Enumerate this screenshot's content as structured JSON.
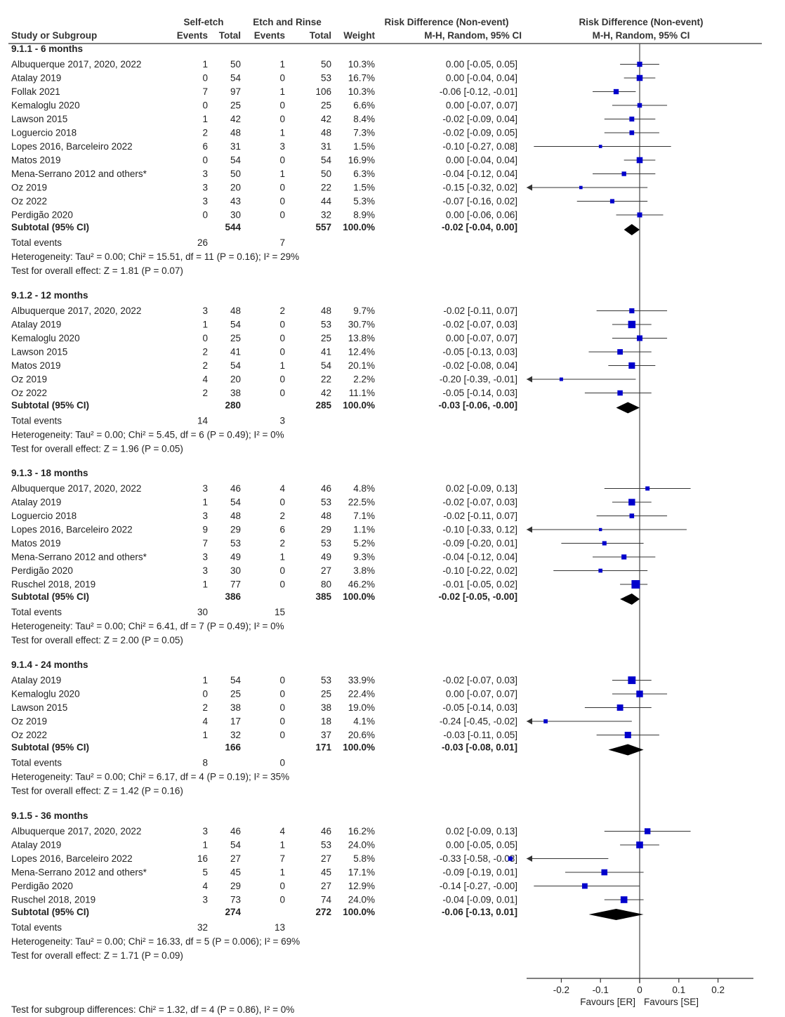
{
  "chart_data": {
    "type": "forest",
    "header": {
      "group1": "Self-etch",
      "group2": "Etch and Rinse",
      "rd_title": "Risk Difference (Non-event)",
      "rd_method": "M-H, Random, 95% CI",
      "study_col": "Study or Subgroup",
      "events_col": "Events",
      "total_col": "Total",
      "weight_col": "Weight"
    },
    "x_axis": {
      "ticks": [
        "-0.2",
        "-0.1",
        "0",
        "0.1",
        "0.2"
      ],
      "range": [
        -0.3,
        0.3
      ],
      "favours_left": "Favours [ER]",
      "favours_right": "Favours [SE]"
    },
    "subgroups": [
      {
        "title": "9.1.1 - 6 months",
        "studies": [
          {
            "name": "Albuquerque 2017, 2020, 2022",
            "e1": "1",
            "n1": "50",
            "e2": "1",
            "n2": "50",
            "weight": "10.3%",
            "ci": "0.00 [-0.05, 0.05]",
            "rd": 0.0,
            "lo": -0.05,
            "hi": 0.05
          },
          {
            "name": "Atalay 2019",
            "e1": "0",
            "n1": "54",
            "e2": "0",
            "n2": "53",
            "weight": "16.7%",
            "ci": "0.00 [-0.04, 0.04]",
            "rd": 0.0,
            "lo": -0.04,
            "hi": 0.04
          },
          {
            "name": "Follak 2021",
            "e1": "7",
            "n1": "97",
            "e2": "1",
            "n2": "106",
            "weight": "10.3%",
            "ci": "-0.06 [-0.12, -0.01]",
            "rd": -0.06,
            "lo": -0.12,
            "hi": -0.01
          },
          {
            "name": "Kemaloglu 2020",
            "e1": "0",
            "n1": "25",
            "e2": "0",
            "n2": "25",
            "weight": "6.6%",
            "ci": "0.00 [-0.07, 0.07]",
            "rd": 0.0,
            "lo": -0.07,
            "hi": 0.07
          },
          {
            "name": "Lawson 2015",
            "e1": "1",
            "n1": "42",
            "e2": "0",
            "n2": "42",
            "weight": "8.4%",
            "ci": "-0.02 [-0.09, 0.04]",
            "rd": -0.02,
            "lo": -0.09,
            "hi": 0.04
          },
          {
            "name": "Loguercio 2018",
            "e1": "2",
            "n1": "48",
            "e2": "1",
            "n2": "48",
            "weight": "7.3%",
            "ci": "-0.02 [-0.09, 0.05]",
            "rd": -0.02,
            "lo": -0.09,
            "hi": 0.05
          },
          {
            "name": "Lopes 2016, Barceleiro 2022",
            "e1": "6",
            "n1": "31",
            "e2": "3",
            "n2": "31",
            "weight": "1.5%",
            "ci": "-0.10 [-0.27, 0.08]",
            "rd": -0.1,
            "lo": -0.27,
            "hi": 0.08
          },
          {
            "name": "Matos 2019",
            "e1": "0",
            "n1": "54",
            "e2": "0",
            "n2": "54",
            "weight": "16.9%",
            "ci": "0.00 [-0.04, 0.04]",
            "rd": 0.0,
            "lo": -0.04,
            "hi": 0.04
          },
          {
            "name": "Mena-Serrano 2012 and others*",
            "e1": "3",
            "n1": "50",
            "e2": "1",
            "n2": "50",
            "weight": "6.3%",
            "ci": "-0.04 [-0.12, 0.04]",
            "rd": -0.04,
            "lo": -0.12,
            "hi": 0.04
          },
          {
            "name": "Oz 2019",
            "e1": "3",
            "n1": "20",
            "e2": "0",
            "n2": "22",
            "weight": "1.5%",
            "ci": "-0.15 [-0.32, 0.02]",
            "rd": -0.15,
            "lo": -0.32,
            "hi": 0.02
          },
          {
            "name": "Oz 2022",
            "e1": "3",
            "n1": "43",
            "e2": "0",
            "n2": "44",
            "weight": "5.3%",
            "ci": "-0.07 [-0.16, 0.02]",
            "rd": -0.07,
            "lo": -0.16,
            "hi": 0.02
          },
          {
            "name": "Perdigão 2020",
            "e1": "0",
            "n1": "30",
            "e2": "0",
            "n2": "32",
            "weight": "8.9%",
            "ci": "0.00 [-0.06, 0.06]",
            "rd": 0.0,
            "lo": -0.06,
            "hi": 0.06
          }
        ],
        "subtotal": {
          "label": "Subtotal (95% CI)",
          "n1": "544",
          "n2": "557",
          "weight": "100.0%",
          "ci": "-0.02 [-0.04, 0.00]",
          "rd": -0.02,
          "lo": -0.04,
          "hi": 0.0
        },
        "total_events": {
          "label": "Total events",
          "e1": "26",
          "e2": "7"
        },
        "heterogeneity": "Heterogeneity: Tau² = 0.00; Chi² = 15.51, df = 11 (P = 0.16); I² = 29%",
        "overall": "Test for overall effect: Z = 1.81 (P = 0.07)"
      },
      {
        "title": "9.1.2 - 12 months",
        "studies": [
          {
            "name": "Albuquerque 2017, 2020, 2022",
            "e1": "3",
            "n1": "48",
            "e2": "2",
            "n2": "48",
            "weight": "9.7%",
            "ci": "-0.02 [-0.11, 0.07]",
            "rd": -0.02,
            "lo": -0.11,
            "hi": 0.07
          },
          {
            "name": "Atalay 2019",
            "e1": "1",
            "n1": "54",
            "e2": "0",
            "n2": "53",
            "weight": "30.7%",
            "ci": "-0.02 [-0.07, 0.03]",
            "rd": -0.02,
            "lo": -0.07,
            "hi": 0.03
          },
          {
            "name": "Kemaloglu 2020",
            "e1": "0",
            "n1": "25",
            "e2": "0",
            "n2": "25",
            "weight": "13.8%",
            "ci": "0.00 [-0.07, 0.07]",
            "rd": 0.0,
            "lo": -0.07,
            "hi": 0.07
          },
          {
            "name": "Lawson 2015",
            "e1": "2",
            "n1": "41",
            "e2": "0",
            "n2": "41",
            "weight": "12.4%",
            "ci": "-0.05 [-0.13, 0.03]",
            "rd": -0.05,
            "lo": -0.13,
            "hi": 0.03
          },
          {
            "name": "Matos 2019",
            "e1": "2",
            "n1": "54",
            "e2": "1",
            "n2": "54",
            "weight": "20.1%",
            "ci": "-0.02 [-0.08, 0.04]",
            "rd": -0.02,
            "lo": -0.08,
            "hi": 0.04
          },
          {
            "name": "Oz 2019",
            "e1": "4",
            "n1": "20",
            "e2": "0",
            "n2": "22",
            "weight": "2.2%",
            "ci": "-0.20 [-0.39, -0.01]",
            "rd": -0.2,
            "lo": -0.39,
            "hi": -0.01
          },
          {
            "name": "Oz 2022",
            "e1": "2",
            "n1": "38",
            "e2": "0",
            "n2": "42",
            "weight": "11.1%",
            "ci": "-0.05 [-0.14, 0.03]",
            "rd": -0.05,
            "lo": -0.14,
            "hi": 0.03
          }
        ],
        "subtotal": {
          "label": "Subtotal (95% CI)",
          "n1": "280",
          "n2": "285",
          "weight": "100.0%",
          "ci": "-0.03 [-0.06, -0.00]",
          "rd": -0.03,
          "lo": -0.06,
          "hi": 0.0
        },
        "total_events": {
          "label": "Total events",
          "e1": "14",
          "e2": "3"
        },
        "heterogeneity": "Heterogeneity: Tau² = 0.00; Chi² = 5.45, df = 6 (P = 0.49); I² = 0%",
        "overall": "Test for overall effect: Z = 1.96 (P = 0.05)"
      },
      {
        "title": "9.1.3 - 18 months",
        "studies": [
          {
            "name": "Albuquerque 2017, 2020, 2022",
            "e1": "3",
            "n1": "46",
            "e2": "4",
            "n2": "46",
            "weight": "4.8%",
            "ci": "0.02 [-0.09, 0.13]",
            "rd": 0.02,
            "lo": -0.09,
            "hi": 0.13
          },
          {
            "name": "Atalay 2019",
            "e1": "1",
            "n1": "54",
            "e2": "0",
            "n2": "53",
            "weight": "22.5%",
            "ci": "-0.02 [-0.07, 0.03]",
            "rd": -0.02,
            "lo": -0.07,
            "hi": 0.03
          },
          {
            "name": "Loguercio 2018",
            "e1": "3",
            "n1": "48",
            "e2": "2",
            "n2": "48",
            "weight": "7.1%",
            "ci": "-0.02 [-0.11, 0.07]",
            "rd": -0.02,
            "lo": -0.11,
            "hi": 0.07
          },
          {
            "name": "Lopes 2016, Barceleiro 2022",
            "e1": "9",
            "n1": "29",
            "e2": "6",
            "n2": "29",
            "weight": "1.1%",
            "ci": "-0.10 [-0.33, 0.12]",
            "rd": -0.1,
            "lo": -0.33,
            "hi": 0.12
          },
          {
            "name": "Matos 2019",
            "e1": "7",
            "n1": "53",
            "e2": "2",
            "n2": "53",
            "weight": "5.2%",
            "ci": "-0.09 [-0.20, 0.01]",
            "rd": -0.09,
            "lo": -0.2,
            "hi": 0.01
          },
          {
            "name": "Mena-Serrano 2012 and others*",
            "e1": "3",
            "n1": "49",
            "e2": "1",
            "n2": "49",
            "weight": "9.3%",
            "ci": "-0.04 [-0.12, 0.04]",
            "rd": -0.04,
            "lo": -0.12,
            "hi": 0.04
          },
          {
            "name": "Perdigão 2020",
            "e1": "3",
            "n1": "30",
            "e2": "0",
            "n2": "27",
            "weight": "3.8%",
            "ci": "-0.10 [-0.22, 0.02]",
            "rd": -0.1,
            "lo": -0.22,
            "hi": 0.02
          },
          {
            "name": "Ruschel 2018, 2019",
            "e1": "1",
            "n1": "77",
            "e2": "0",
            "n2": "80",
            "weight": "46.2%",
            "ci": "-0.01 [-0.05, 0.02]",
            "rd": -0.01,
            "lo": -0.05,
            "hi": 0.02
          }
        ],
        "subtotal": {
          "label": "Subtotal (95% CI)",
          "n1": "386",
          "n2": "385",
          "weight": "100.0%",
          "ci": "-0.02 [-0.05, -0.00]",
          "rd": -0.02,
          "lo": -0.05,
          "hi": 0.0
        },
        "total_events": {
          "label": "Total events",
          "e1": "30",
          "e2": "15"
        },
        "heterogeneity": "Heterogeneity: Tau² = 0.00; Chi² = 6.41, df = 7 (P = 0.49); I² = 0%",
        "overall": "Test for overall effect: Z = 2.00 (P = 0.05)"
      },
      {
        "title": "9.1.4 - 24 months",
        "studies": [
          {
            "name": "Atalay 2019",
            "e1": "1",
            "n1": "54",
            "e2": "0",
            "n2": "53",
            "weight": "33.9%",
            "ci": "-0.02 [-0.07, 0.03]",
            "rd": -0.02,
            "lo": -0.07,
            "hi": 0.03
          },
          {
            "name": "Kemaloglu 2020",
            "e1": "0",
            "n1": "25",
            "e2": "0",
            "n2": "25",
            "weight": "22.4%",
            "ci": "0.00 [-0.07, 0.07]",
            "rd": 0.0,
            "lo": -0.07,
            "hi": 0.07
          },
          {
            "name": "Lawson 2015",
            "e1": "2",
            "n1": "38",
            "e2": "0",
            "n2": "38",
            "weight": "19.0%",
            "ci": "-0.05 [-0.14, 0.03]",
            "rd": -0.05,
            "lo": -0.14,
            "hi": 0.03
          },
          {
            "name": "Oz 2019",
            "e1": "4",
            "n1": "17",
            "e2": "0",
            "n2": "18",
            "weight": "4.1%",
            "ci": "-0.24 [-0.45, -0.02]",
            "rd": -0.24,
            "lo": -0.45,
            "hi": -0.02
          },
          {
            "name": "Oz 2022",
            "e1": "1",
            "n1": "32",
            "e2": "0",
            "n2": "37",
            "weight": "20.6%",
            "ci": "-0.03 [-0.11, 0.05]",
            "rd": -0.03,
            "lo": -0.11,
            "hi": 0.05
          }
        ],
        "subtotal": {
          "label": "Subtotal (95% CI)",
          "n1": "166",
          "n2": "171",
          "weight": "100.0%",
          "ci": "-0.03 [-0.08, 0.01]",
          "rd": -0.03,
          "lo": -0.08,
          "hi": 0.01
        },
        "total_events": {
          "label": "Total events",
          "e1": "8",
          "e2": "0"
        },
        "heterogeneity": "Heterogeneity: Tau² = 0.00; Chi² = 6.17, df = 4 (P = 0.19); I² = 35%",
        "overall": "Test for overall effect: Z = 1.42 (P = 0.16)"
      },
      {
        "title": "9.1.5 - 36 months",
        "studies": [
          {
            "name": "Albuquerque 2017, 2020, 2022",
            "e1": "3",
            "n1": "46",
            "e2": "4",
            "n2": "46",
            "weight": "16.2%",
            "ci": "0.02 [-0.09, 0.13]",
            "rd": 0.02,
            "lo": -0.09,
            "hi": 0.13
          },
          {
            "name": "Atalay 2019",
            "e1": "1",
            "n1": "54",
            "e2": "1",
            "n2": "53",
            "weight": "24.0%",
            "ci": "0.00 [-0.05, 0.05]",
            "rd": 0.0,
            "lo": -0.05,
            "hi": 0.05
          },
          {
            "name": "Lopes 2016, Barceleiro 2022",
            "e1": "16",
            "n1": "27",
            "e2": "7",
            "n2": "27",
            "weight": "5.8%",
            "ci": "-0.33 [-0.58, -0.08]",
            "rd": -0.33,
            "lo": -0.58,
            "hi": -0.08
          },
          {
            "name": "Mena-Serrano 2012 and others*",
            "e1": "5",
            "n1": "45",
            "e2": "1",
            "n2": "45",
            "weight": "17.1%",
            "ci": "-0.09 [-0.19, 0.01]",
            "rd": -0.09,
            "lo": -0.19,
            "hi": 0.01
          },
          {
            "name": "Perdigão 2020",
            "e1": "4",
            "n1": "29",
            "e2": "0",
            "n2": "27",
            "weight": "12.9%",
            "ci": "-0.14 [-0.27, -0.00]",
            "rd": -0.14,
            "lo": -0.27,
            "hi": 0.0
          },
          {
            "name": "Ruschel 2018, 2019",
            "e1": "3",
            "n1": "73",
            "e2": "0",
            "n2": "74",
            "weight": "24.0%",
            "ci": "-0.04 [-0.09, 0.01]",
            "rd": -0.04,
            "lo": -0.09,
            "hi": 0.01
          }
        ],
        "subtotal": {
          "label": "Subtotal (95% CI)",
          "n1": "274",
          "n2": "272",
          "weight": "100.0%",
          "ci": "-0.06 [-0.13, 0.01]",
          "rd": -0.06,
          "lo": -0.13,
          "hi": 0.01
        },
        "total_events": {
          "label": "Total events",
          "e1": "32",
          "e2": "13"
        },
        "heterogeneity": "Heterogeneity: Tau² = 0.00; Chi² = 16.33, df = 5 (P = 0.006); I² = 69%",
        "overall": "Test for overall effect: Z = 1.71 (P = 0.09)"
      }
    ],
    "subgroup_differences": "Test for subgroup differences: Chi² = 1.32, df = 4 (P = 0.86), I² = 0%",
    "colors": {
      "marker": "#0000cc",
      "line": "#333333",
      "diamond": "#000000"
    }
  }
}
